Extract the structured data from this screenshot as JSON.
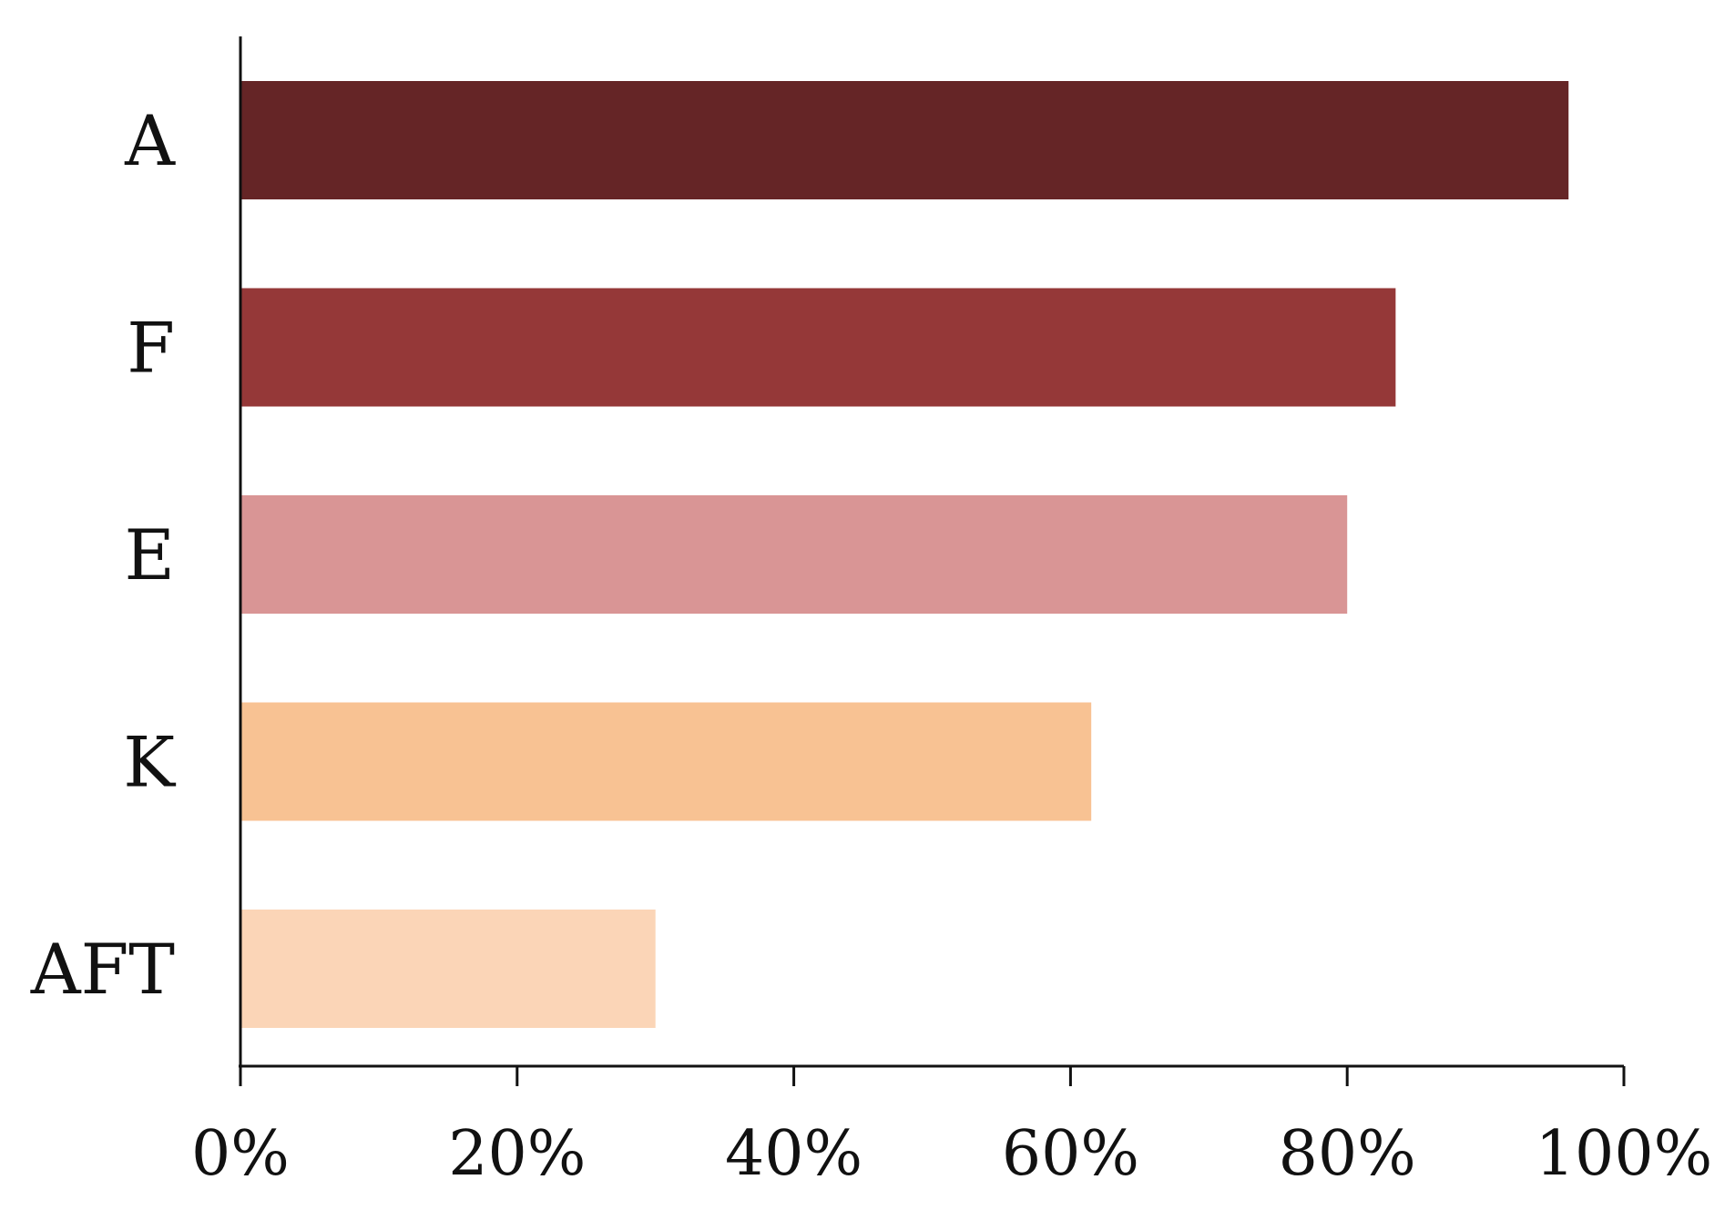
{
  "chart_data": {
    "type": "bar",
    "orientation": "horizontal",
    "title": "",
    "xlabel": "",
    "ylabel": "",
    "categories": [
      "A",
      "F",
      "E",
      "K",
      "AFT"
    ],
    "values": [
      96,
      83.5,
      80,
      61.5,
      30
    ],
    "colors": [
      "#652526",
      "#953838",
      "#d99595",
      "#f8c293",
      "#fbd5b7"
    ],
    "xlim": [
      0,
      100
    ],
    "x_ticks": [
      0,
      20,
      40,
      60,
      80,
      100
    ],
    "x_tick_labels": [
      "0%",
      "20%",
      "40%",
      "60%",
      "80%",
      "100%"
    ],
    "grid": false,
    "legend": "none"
  }
}
